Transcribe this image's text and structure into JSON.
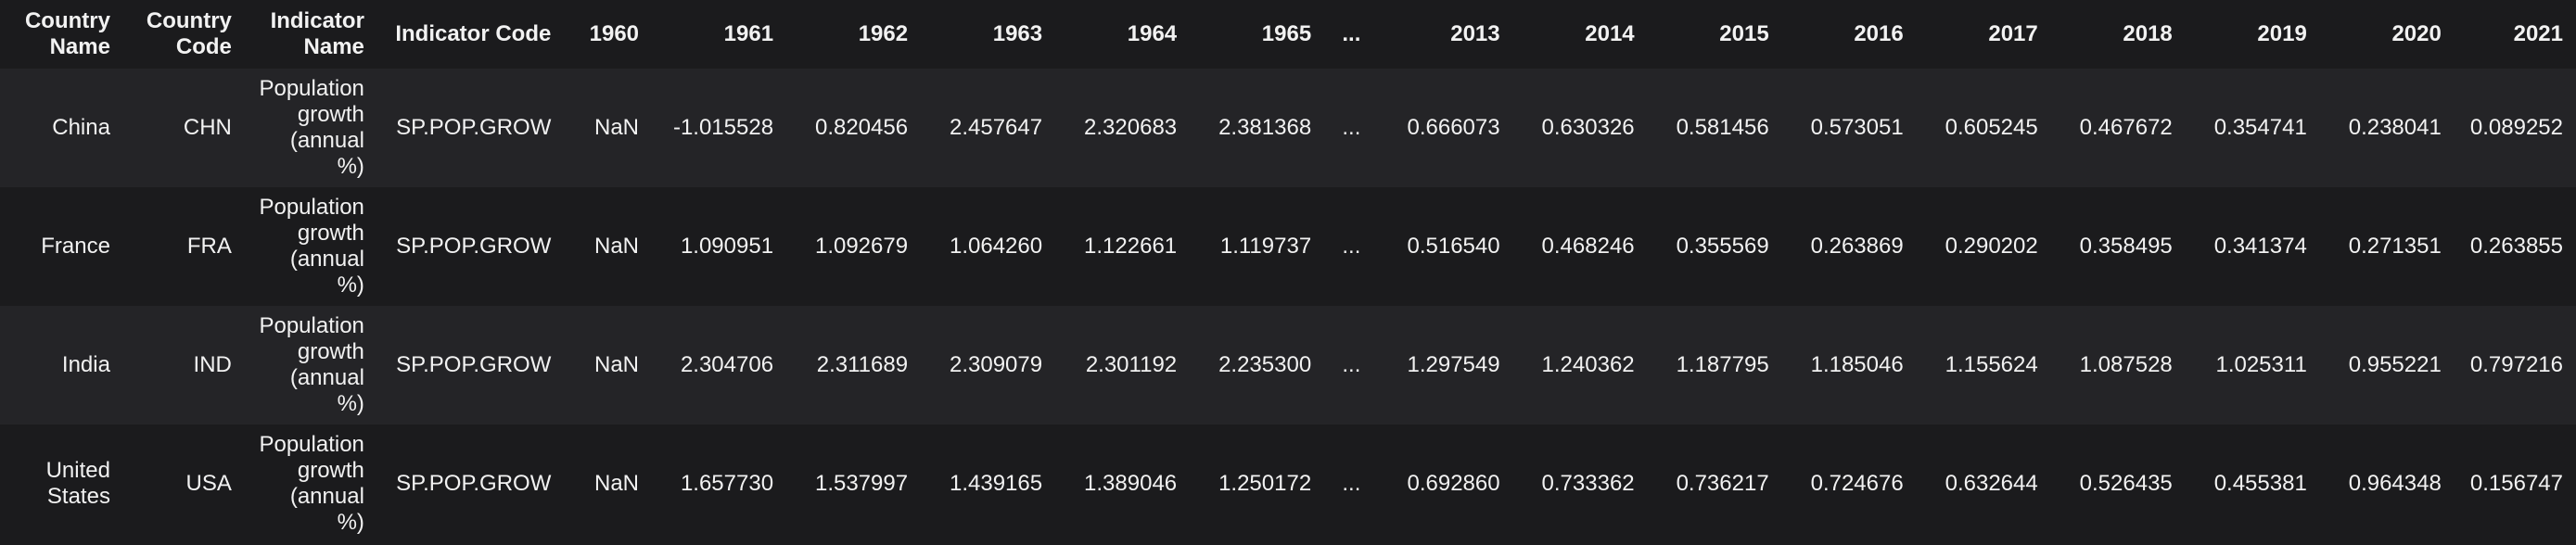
{
  "columns": [
    "Country Name",
    "Country Code",
    "Indicator Name",
    "Indicator Code",
    "1960",
    "1961",
    "1962",
    "1963",
    "1964",
    "1965",
    "...",
    "2013",
    "2014",
    "2015",
    "2016",
    "2017",
    "2018",
    "2019",
    "2020",
    "2021"
  ],
  "rows": [
    [
      "China",
      "CHN",
      "Population growth (annual %)",
      "SP.POP.GROW",
      "NaN",
      "-1.015528",
      "0.820456",
      "2.457647",
      "2.320683",
      "2.381368",
      "...",
      "0.666073",
      "0.630326",
      "0.581456",
      "0.573051",
      "0.605245",
      "0.467672",
      "0.354741",
      "0.238041",
      "0.089252"
    ],
    [
      "France",
      "FRA",
      "Population growth (annual %)",
      "SP.POP.GROW",
      "NaN",
      "1.090951",
      "1.092679",
      "1.064260",
      "1.122661",
      "1.119737",
      "...",
      "0.516540",
      "0.468246",
      "0.355569",
      "0.263869",
      "0.290202",
      "0.358495",
      "0.341374",
      "0.271351",
      "0.263855"
    ],
    [
      "India",
      "IND",
      "Population growth (annual %)",
      "SP.POP.GROW",
      "NaN",
      "2.304706",
      "2.311689",
      "2.309079",
      "2.301192",
      "2.235300",
      "...",
      "1.297549",
      "1.240362",
      "1.187795",
      "1.185046",
      "1.155624",
      "1.087528",
      "1.025311",
      "0.955221",
      "0.797216"
    ],
    [
      "United States",
      "USA",
      "Population growth (annual %)",
      "SP.POP.GROW",
      "NaN",
      "1.657730",
      "1.537997",
      "1.439165",
      "1.389046",
      "1.250172",
      "...",
      "0.692860",
      "0.733362",
      "0.736217",
      "0.724676",
      "0.632644",
      "0.526435",
      "0.455381",
      "0.964348",
      "0.156747"
    ]
  ]
}
